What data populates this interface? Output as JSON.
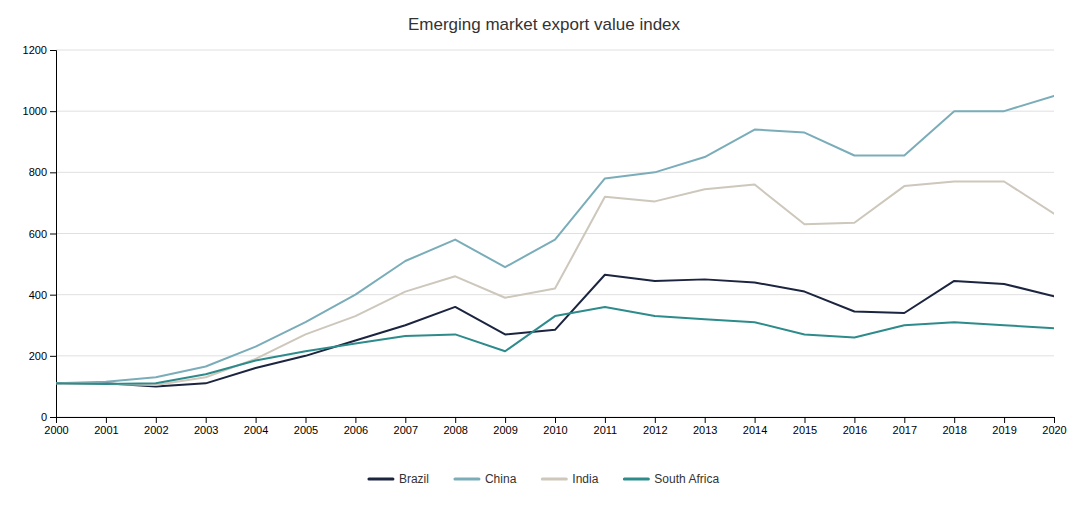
{
  "chart_data": {
    "type": "line",
    "title": "Emerging market export value index",
    "x": [
      2000,
      2001,
      2002,
      2003,
      2004,
      2005,
      2006,
      2007,
      2008,
      2009,
      2010,
      2011,
      2012,
      2013,
      2014,
      2015,
      2016,
      2017,
      2018,
      2019,
      2020
    ],
    "series": [
      {
        "name": "Brazil",
        "color": "#1c2540",
        "values": [
          110,
          110,
          100,
          110,
          160,
          200,
          250,
          300,
          360,
          270,
          285,
          465,
          445,
          450,
          440,
          410,
          345,
          340,
          445,
          435,
          395
        ]
      },
      {
        "name": "China",
        "color": "#7aadb9",
        "values": [
          110,
          115,
          130,
          165,
          230,
          310,
          400,
          510,
          580,
          490,
          580,
          780,
          800,
          850,
          940,
          930,
          855,
          855,
          1000,
          1000,
          1050
        ]
      },
      {
        "name": "India",
        "color": "#cdc7bc",
        "values": [
          110,
          108,
          105,
          130,
          190,
          270,
          330,
          410,
          460,
          390,
          420,
          720,
          705,
          745,
          760,
          630,
          635,
          755,
          770,
          770,
          665
        ]
      },
      {
        "name": "South Africa",
        "color": "#2e8b8b",
        "values": [
          110,
          108,
          110,
          140,
          185,
          215,
          240,
          265,
          270,
          215,
          330,
          360,
          330,
          320,
          310,
          270,
          260,
          300,
          310,
          300,
          290
        ]
      }
    ],
    "xlim": [
      2000,
      2020
    ],
    "xticks": [
      2000,
      2001,
      2002,
      2003,
      2004,
      2005,
      2006,
      2007,
      2008,
      2009,
      2010,
      2011,
      2012,
      2013,
      2014,
      2015,
      2016,
      2017,
      2018,
      2019,
      2020
    ],
    "ylim": [
      0,
      1200
    ],
    "yticks": [
      0,
      200,
      400,
      600,
      800,
      1000,
      1200
    ],
    "grid": true,
    "legend": "bottom"
  }
}
